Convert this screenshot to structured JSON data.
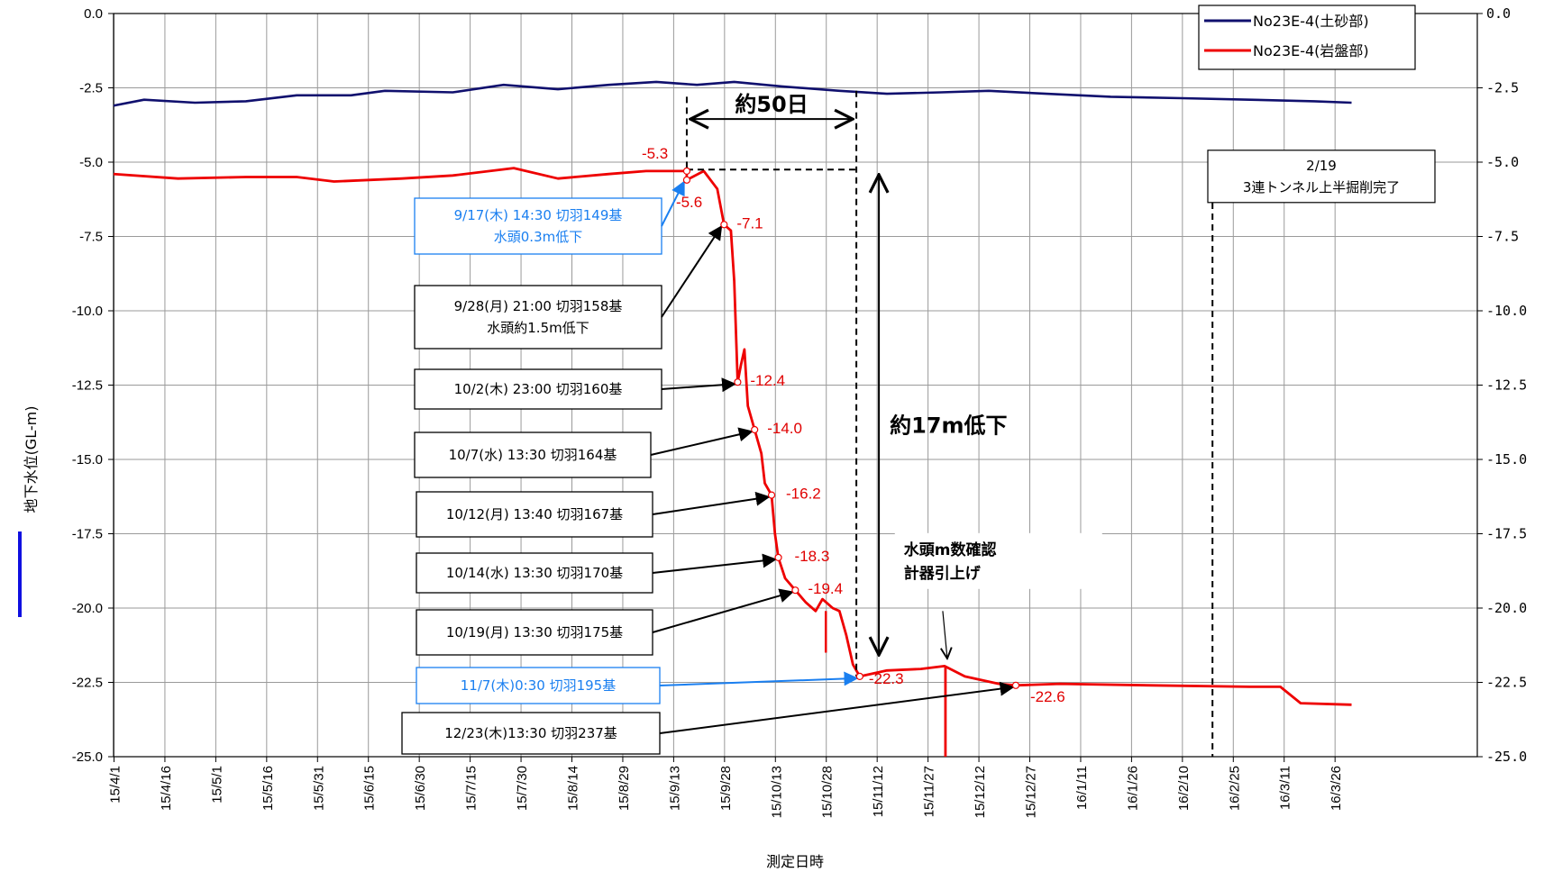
{
  "chart_data": {
    "type": "line",
    "title": "",
    "xlabel": "測定日時",
    "ylabel": "地下水位(GL-m)",
    "x_range": [
      "15/4/1",
      "16/3/31"
    ],
    "ylim": [
      -25.0,
      0.0
    ],
    "y_ticks": [
      "0.0",
      "-2.5",
      "-5.0",
      "-7.5",
      "-10.0",
      "-12.5",
      "-15.0",
      "-17.5",
      "-20.0",
      "-22.5",
      "-25.0"
    ],
    "y_ticks_right": [
      "0.0",
      "-2.5",
      "-5.0",
      "-7.5",
      "-10.0",
      "-12.5",
      "-15.0",
      "-17.5",
      "-20.0",
      "-22.5",
      "-25.0"
    ],
    "x_ticks": [
      "15/4/1",
      "15/4/16",
      "15/5/1",
      "15/5/16",
      "15/5/31",
      "15/6/15",
      "15/6/30",
      "15/7/15",
      "15/7/30",
      "15/8/14",
      "15/8/29",
      "15/9/13",
      "15/9/28",
      "15/10/13",
      "15/10/28",
      "15/11/12",
      "15/11/27",
      "15/12/12",
      "15/12/27",
      "16/1/11",
      "16/1/26",
      "16/2/10",
      "16/2/25",
      "16/3/11",
      "16/3/26"
    ],
    "grid": true,
    "legend": "top-right",
    "series": [
      {
        "name": "No23E-4(土砂部)",
        "color": "#10106e",
        "points": [
          [
            "2015-04-01",
            -3.1
          ],
          [
            "2015-04-10",
            -2.9
          ],
          [
            "2015-04-25",
            -3.0
          ],
          [
            "2015-05-10",
            -2.95
          ],
          [
            "2015-05-25",
            -2.75
          ],
          [
            "2015-06-10",
            -2.75
          ],
          [
            "2015-06-20",
            -2.6
          ],
          [
            "2015-07-10",
            -2.65
          ],
          [
            "2015-07-25",
            -2.4
          ],
          [
            "2015-08-10",
            -2.55
          ],
          [
            "2015-08-25",
            -2.4
          ],
          [
            "2015-09-08",
            -2.3
          ],
          [
            "2015-09-20",
            -2.4
          ],
          [
            "2015-10-01",
            -2.3
          ],
          [
            "2015-10-15",
            -2.45
          ],
          [
            "2015-11-01",
            -2.6
          ],
          [
            "2015-11-15",
            -2.7
          ],
          [
            "2015-12-01",
            -2.65
          ],
          [
            "2015-12-15",
            -2.6
          ],
          [
            "2016-01-01",
            -2.7
          ],
          [
            "2016-01-20",
            -2.8
          ],
          [
            "2016-02-10",
            -2.85
          ],
          [
            "2016-03-01",
            -2.9
          ],
          [
            "2016-03-20",
            -2.95
          ],
          [
            "2016-03-31",
            -3.0
          ]
        ]
      },
      {
        "name": "No23E-4(岩盤部)",
        "color": "#ee0000",
        "points": [
          [
            "2015-04-01",
            -5.4
          ],
          [
            "2015-04-20",
            -5.55
          ],
          [
            "2015-05-10",
            -5.5
          ],
          [
            "2015-05-25",
            -5.5
          ],
          [
            "2015-06-05",
            -5.65
          ],
          [
            "2015-06-25",
            -5.55
          ],
          [
            "2015-07-10",
            -5.45
          ],
          [
            "2015-07-28",
            -5.2
          ],
          [
            "2015-08-10",
            -5.55
          ],
          [
            "2015-08-25",
            -5.4
          ],
          [
            "2015-09-05",
            -5.3
          ],
          [
            "2015-09-17",
            -5.3
          ],
          [
            "2015-09-17",
            -5.6
          ],
          [
            "2015-09-22",
            -5.3
          ],
          [
            "2015-09-26",
            -5.9
          ],
          [
            "2015-09-28",
            -7.1
          ],
          [
            "2015-09-30",
            -7.3
          ],
          [
            "2015-10-01",
            -9.0
          ],
          [
            "2015-10-02",
            -12.4
          ],
          [
            "2015-10-03",
            -11.8
          ],
          [
            "2015-10-04",
            -11.3
          ],
          [
            "2015-10-05",
            -13.2
          ],
          [
            "2015-10-07",
            -14.0
          ],
          [
            "2015-10-09",
            -14.8
          ],
          [
            "2015-10-10",
            -15.8
          ],
          [
            "2015-10-12",
            -16.2
          ],
          [
            "2015-10-13",
            -17.5
          ],
          [
            "2015-10-14",
            -18.3
          ],
          [
            "2015-10-16",
            -19.0
          ],
          [
            "2015-10-19",
            -19.4
          ],
          [
            "2015-10-22",
            -19.8
          ],
          [
            "2015-10-25",
            -20.1
          ],
          [
            "2015-10-27",
            -19.7
          ],
          [
            "2015-10-30",
            -20.0
          ],
          [
            "2015-11-01",
            -20.1
          ],
          [
            "2015-11-03",
            -20.9
          ],
          [
            "2015-11-05",
            -21.9
          ],
          [
            "2015-11-07",
            -22.3
          ],
          [
            "2015-11-15",
            -22.1
          ],
          [
            "2015-11-25",
            -22.05
          ],
          [
            "2015-12-02",
            -21.95
          ],
          [
            "2015-12-08",
            -22.3
          ],
          [
            "2015-12-18",
            -22.55
          ],
          [
            "2015-12-23",
            -22.6
          ],
          [
            "2016-01-05",
            -22.55
          ],
          [
            "2016-02-01",
            -22.6
          ],
          [
            "2016-03-01",
            -22.65
          ],
          [
            "2016-03-10",
            -22.65
          ],
          [
            "2016-03-16",
            -23.2
          ],
          [
            "2016-03-31",
            -23.25
          ]
        ]
      }
    ],
    "value_labels": [
      {
        "date": "2015-09-17",
        "value": -5.3,
        "text": "-5.3"
      },
      {
        "date": "2015-09-17",
        "value": -5.6,
        "text": "-5.6"
      },
      {
        "date": "2015-09-28",
        "value": -7.1,
        "text": "-7.1"
      },
      {
        "date": "2015-10-02",
        "value": -12.4,
        "text": "-12.4"
      },
      {
        "date": "2015-10-07",
        "value": -14.0,
        "text": "-14.0"
      },
      {
        "date": "2015-10-12",
        "value": -16.2,
        "text": "-16.2"
      },
      {
        "date": "2015-10-14",
        "value": -18.3,
        "text": "-18.3"
      },
      {
        "date": "2015-10-19",
        "value": -19.4,
        "text": "-19.4"
      },
      {
        "date": "2015-11-07",
        "value": -22.3,
        "text": "-22.3"
      },
      {
        "date": "2015-12-23",
        "value": -22.6,
        "text": "-22.6"
      }
    ],
    "event_callouts": [
      {
        "lines": [
          "9/17(木)  14:30  切羽149基",
          "水頭0.3m低下"
        ],
        "date": "2015-09-17",
        "value": -5.6,
        "color": "#1a7ff0"
      },
      {
        "lines": [
          "9/28(月)  21:00 切羽158基",
          "水頭約1.5m低下"
        ],
        "date": "2015-09-28",
        "value": -7.1,
        "color": "#000000"
      },
      {
        "lines": [
          "10/2(木)  23:00 切羽160基"
        ],
        "date": "2015-10-02",
        "value": -12.4,
        "color": "#000000"
      },
      {
        "lines": [
          "10/7(水)  13:30  切羽164基"
        ],
        "date": "2015-10-07",
        "value": -14.0,
        "color": "#000000"
      },
      {
        "lines": [
          "10/12(月)  13:40  切羽167基"
        ],
        "date": "2015-10-12",
        "value": -16.2,
        "color": "#000000"
      },
      {
        "lines": [
          "10/14(水)  13:30  切羽170基"
        ],
        "date": "2015-10-14",
        "value": -18.3,
        "color": "#000000"
      },
      {
        "lines": [
          "10/19(月)  13:30  切羽175基"
        ],
        "date": "2015-10-19",
        "value": -19.4,
        "color": "#000000"
      },
      {
        "lines": [
          "11/7(木)0:30 切羽195基"
        ],
        "date": "2015-11-07",
        "value": -22.3,
        "color": "#1a7ff0"
      },
      {
        "lines": [
          "12/23(木)13:30 切羽237基"
        ],
        "date": "2015-12-23",
        "value": -22.6,
        "color": "#000000"
      }
    ],
    "annotations": {
      "span_days": "約50日",
      "drop": "約17m低下",
      "instrument": [
        "水頭m数確認",
        "計器引上げ"
      ],
      "event_0219": [
        "2/19",
        "3連トンネル上半掘削完了"
      ]
    }
  }
}
